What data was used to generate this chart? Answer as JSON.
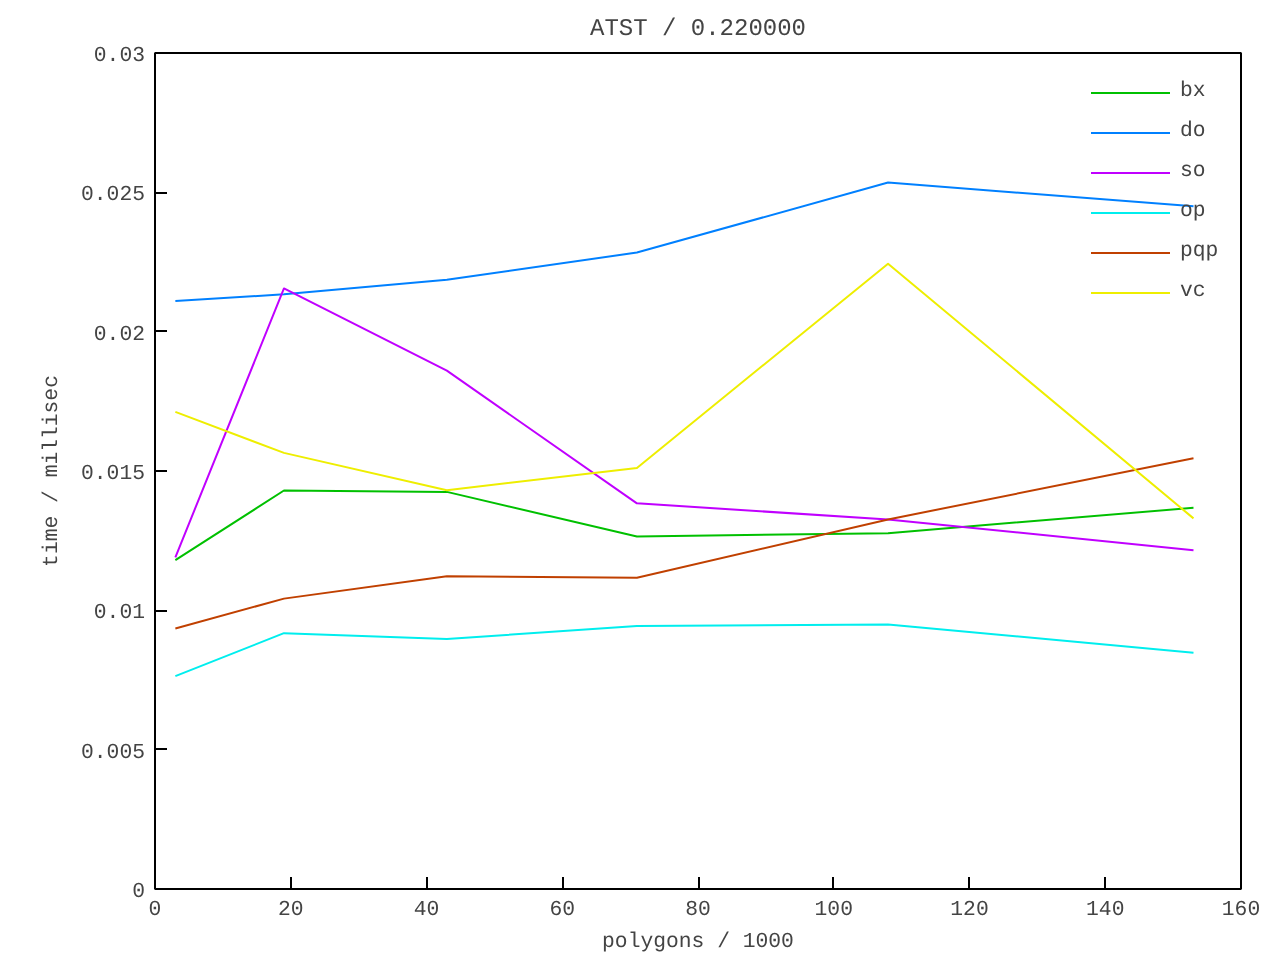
{
  "chart_data": {
    "type": "line",
    "title": "ATST / 0.220000",
    "xlabel": "polygons / 1000",
    "ylabel": "time / millisec",
    "x": [
      3,
      19,
      43,
      71,
      108,
      153
    ],
    "series": [
      {
        "name": "bx",
        "color": "#00c000",
        "values": [
          0.0118,
          0.0143,
          0.01425,
          0.01265,
          0.01277,
          0.01368
        ]
      },
      {
        "name": "do",
        "color": "#0080ff",
        "values": [
          0.0211,
          0.02134,
          0.02186,
          0.02284,
          0.02535,
          0.0245
        ]
      },
      {
        "name": "so",
        "color": "#c000ff",
        "values": [
          0.0119,
          0.02155,
          0.0186,
          0.01384,
          0.01326,
          0.01216
        ]
      },
      {
        "name": "op",
        "color": "#00eeee",
        "values": [
          0.00764,
          0.00918,
          0.00897,
          0.00944,
          0.00949,
          0.00848
        ]
      },
      {
        "name": "pqp",
        "color": "#c04000",
        "values": [
          0.00935,
          0.01042,
          0.01122,
          0.01117,
          0.01326,
          0.01546
        ]
      },
      {
        "name": "vc",
        "color": "#eeee00",
        "values": [
          0.01712,
          0.01565,
          0.01431,
          0.01511,
          0.02244,
          0.0133
        ]
      }
    ],
    "xlim": [
      0,
      160
    ],
    "xticks": [
      0,
      20,
      40,
      60,
      80,
      100,
      120,
      140,
      160
    ],
    "ylim": [
      0,
      0.03
    ],
    "yticks": [
      0,
      0.005,
      0.01,
      0.015,
      0.02,
      0.025,
      0.03
    ],
    "grid": false,
    "legend": "top right",
    "marker": "none",
    "line_style": "solid"
  }
}
